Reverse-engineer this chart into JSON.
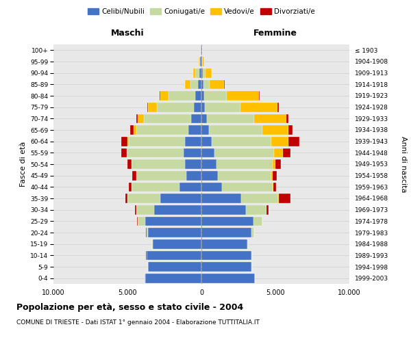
{
  "age_groups": [
    "0-4",
    "5-9",
    "10-14",
    "15-19",
    "20-24",
    "25-29",
    "30-34",
    "35-39",
    "40-44",
    "45-49",
    "50-54",
    "55-59",
    "60-64",
    "65-69",
    "70-74",
    "75-79",
    "80-84",
    "85-89",
    "90-94",
    "95-99",
    "100+"
  ],
  "birth_years": [
    "1999-2003",
    "1994-1998",
    "1989-1993",
    "1984-1988",
    "1979-1983",
    "1974-1978",
    "1969-1973",
    "1964-1968",
    "1959-1963",
    "1954-1958",
    "1949-1953",
    "1944-1948",
    "1939-1943",
    "1934-1938",
    "1929-1933",
    "1924-1928",
    "1919-1923",
    "1914-1918",
    "1909-1913",
    "1904-1908",
    "≤ 1903"
  ],
  "maschi": {
    "celibi": [
      3800,
      3600,
      3700,
      3300,
      3600,
      3800,
      3200,
      2800,
      1500,
      1000,
      1100,
      1200,
      1100,
      900,
      700,
      500,
      400,
      250,
      150,
      80,
      30
    ],
    "coniugati": [
      10,
      10,
      10,
      20,
      100,
      500,
      1200,
      2200,
      3200,
      3400,
      3600,
      3800,
      3800,
      3500,
      3200,
      2500,
      1800,
      500,
      280,
      80,
      20
    ],
    "vedovi": [
      10,
      10,
      10,
      10,
      10,
      10,
      10,
      10,
      20,
      20,
      30,
      50,
      100,
      200,
      400,
      600,
      600,
      350,
      120,
      30,
      5
    ],
    "divorziati": [
      10,
      10,
      10,
      10,
      20,
      30,
      100,
      150,
      200,
      250,
      280,
      350,
      400,
      200,
      80,
      50,
      30,
      30,
      20,
      10,
      5
    ]
  },
  "femmine": {
    "nubili": [
      3600,
      3400,
      3400,
      3100,
      3400,
      3500,
      3000,
      2700,
      1400,
      1100,
      1000,
      900,
      700,
      500,
      350,
      250,
      200,
      150,
      80,
      50,
      30
    ],
    "coniugate": [
      10,
      10,
      10,
      30,
      150,
      600,
      1400,
      2500,
      3400,
      3600,
      3800,
      4000,
      4000,
      3600,
      3200,
      2400,
      1500,
      400,
      200,
      50,
      10
    ],
    "vedove": [
      10,
      10,
      10,
      10,
      10,
      10,
      20,
      30,
      50,
      100,
      200,
      600,
      1200,
      1800,
      2200,
      2500,
      2200,
      1000,
      400,
      80,
      5
    ],
    "divorziate": [
      10,
      10,
      10,
      10,
      20,
      30,
      120,
      800,
      200,
      280,
      380,
      500,
      700,
      250,
      150,
      80,
      50,
      30,
      20,
      10,
      5
    ]
  },
  "colors": {
    "celibi": "#4472c4",
    "coniugati": "#c5d9a0",
    "vedovi": "#ffc000",
    "divorziati": "#c00000"
  },
  "xlim": 10000,
  "title": "Popolazione per età, sesso e stato civile - 2004",
  "subtitle": "COMUNE DI TRIESTE - Dati ISTAT 1° gennaio 2004 - Elaborazione TUTTITALIA.IT",
  "ylabel_left": "Fasce di età",
  "ylabel_right": "Anni di nascita",
  "xlabel_left": "Maschi",
  "xlabel_right": "Femmine",
  "background_color": "#ffffff",
  "plot_bg_color": "#e8e8e8",
  "grid_color": "#bbbbbb"
}
